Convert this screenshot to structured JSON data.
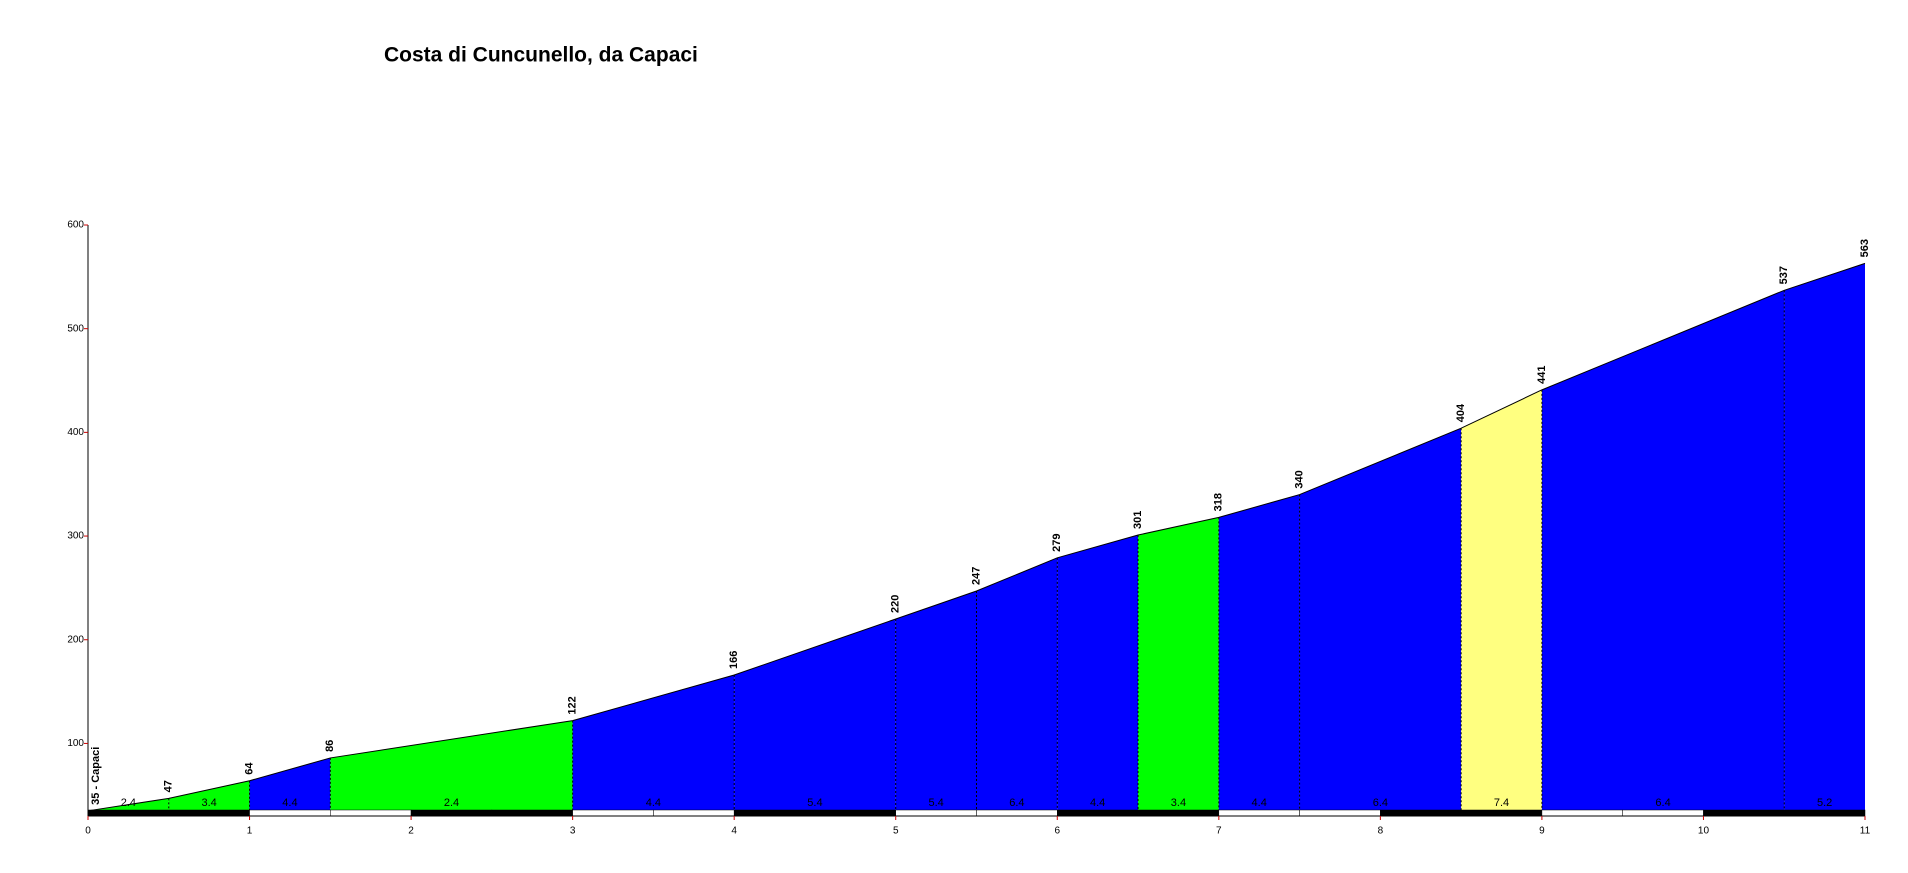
{
  "chart_data": {
    "type": "area",
    "title": "Costa di Cuncunello, da Capaci",
    "x": [
      0,
      0.5,
      1,
      1.5,
      3,
      4,
      5,
      5.5,
      6,
      6.5,
      7,
      7.5,
      8.5,
      9,
      10.5,
      11
    ],
    "values": [
      35,
      47,
      64,
      86,
      122,
      166,
      220,
      247,
      279,
      301,
      318,
      340,
      404,
      441,
      537,
      563
    ],
    "value_labels": [
      "35 - Capaci",
      "47",
      "64",
      "86",
      "122",
      "166",
      "220",
      "247",
      "279",
      "301",
      "318",
      "340",
      "404",
      "441",
      "537",
      "563"
    ],
    "segments": [
      {
        "gradient": 2.4,
        "color": "#00ff00"
      },
      {
        "gradient": 3.4,
        "color": "#00ff00"
      },
      {
        "gradient": 4.4,
        "color": "#0000ff"
      },
      {
        "gradient": 2.4,
        "color": "#00ff00"
      },
      {
        "gradient": 4.4,
        "color": "#0000ff"
      },
      {
        "gradient": 5.4,
        "color": "#0000ff"
      },
      {
        "gradient": 5.4,
        "color": "#0000ff"
      },
      {
        "gradient": 6.4,
        "color": "#0000ff"
      },
      {
        "gradient": 4.4,
        "color": "#0000ff"
      },
      {
        "gradient": 3.4,
        "color": "#00ff00"
      },
      {
        "gradient": 4.4,
        "color": "#0000ff"
      },
      {
        "gradient": 6.4,
        "color": "#0000ff"
      },
      {
        "gradient": 7.4,
        "color": "#ffff80"
      },
      {
        "gradient": 6.4,
        "color": "#0000ff"
      },
      {
        "gradient": 5.2,
        "color": "#0000ff"
      }
    ],
    "xlim": [
      0,
      11
    ],
    "xticks": [
      0,
      1,
      2,
      3,
      4,
      5,
      6,
      7,
      8,
      9,
      10,
      11
    ],
    "ylim": [
      30,
      600
    ],
    "yticks": [
      100,
      200,
      300,
      400,
      500,
      600
    ]
  }
}
